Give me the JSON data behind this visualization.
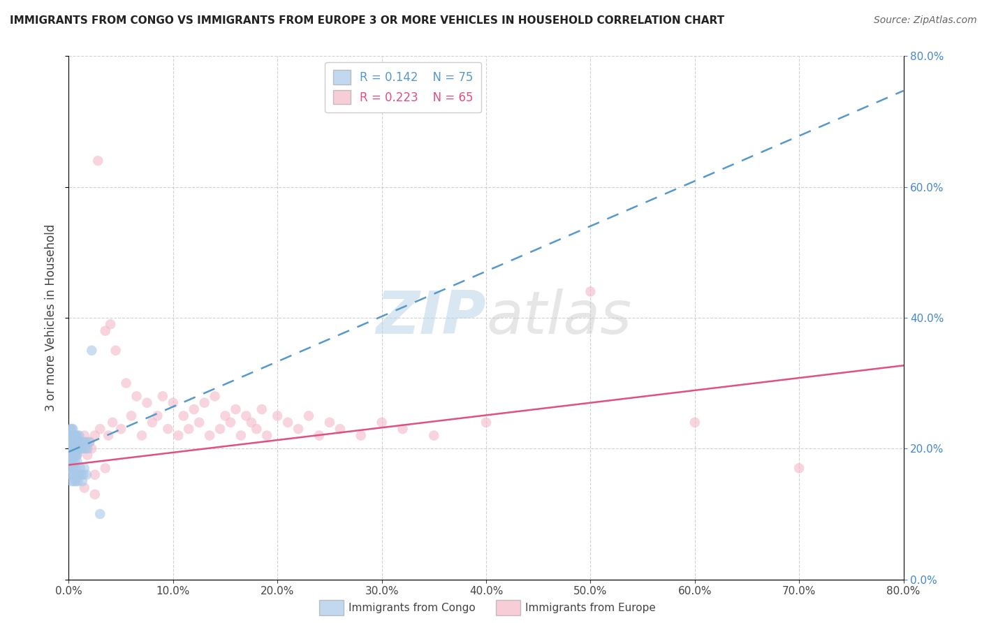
{
  "title": "IMMIGRANTS FROM CONGO VS IMMIGRANTS FROM EUROPE 3 OR MORE VEHICLES IN HOUSEHOLD CORRELATION CHART",
  "source": "Source: ZipAtlas.com",
  "ylabel": "3 or more Vehicles in Household",
  "legend_congo": {
    "R": "0.142",
    "N": "75"
  },
  "legend_europe": {
    "R": "0.223",
    "N": "65"
  },
  "congo_color": "#a8c8e8",
  "europe_color": "#f4b8c8",
  "congo_line_color": "#5599cc",
  "europe_line_color": "#e05080",
  "xlim": [
    0.0,
    0.8
  ],
  "ylim": [
    0.0,
    0.8
  ],
  "congo_points_x": [
    0.001,
    0.001,
    0.001,
    0.002,
    0.002,
    0.002,
    0.002,
    0.002,
    0.003,
    0.003,
    0.003,
    0.003,
    0.003,
    0.003,
    0.003,
    0.004,
    0.004,
    0.004,
    0.004,
    0.004,
    0.004,
    0.005,
    0.005,
    0.005,
    0.005,
    0.005,
    0.006,
    0.006,
    0.006,
    0.006,
    0.007,
    0.007,
    0.007,
    0.007,
    0.008,
    0.008,
    0.008,
    0.009,
    0.009,
    0.01,
    0.01,
    0.011,
    0.012,
    0.013,
    0.014,
    0.015,
    0.016,
    0.017,
    0.018,
    0.02,
    0.001,
    0.002,
    0.002,
    0.003,
    0.003,
    0.004,
    0.004,
    0.005,
    0.005,
    0.006,
    0.006,
    0.007,
    0.007,
    0.008,
    0.008,
    0.009,
    0.01,
    0.011,
    0.012,
    0.013,
    0.014,
    0.015,
    0.017,
    0.022,
    0.03
  ],
  "congo_points_y": [
    0.2,
    0.22,
    0.18,
    0.21,
    0.23,
    0.19,
    0.22,
    0.2,
    0.21,
    0.23,
    0.19,
    0.22,
    0.2,
    0.21,
    0.18,
    0.21,
    0.23,
    0.19,
    0.22,
    0.2,
    0.21,
    0.2,
    0.22,
    0.19,
    0.21,
    0.2,
    0.21,
    0.19,
    0.22,
    0.2,
    0.21,
    0.19,
    0.22,
    0.2,
    0.21,
    0.19,
    0.22,
    0.2,
    0.21,
    0.2,
    0.22,
    0.21,
    0.2,
    0.21,
    0.2,
    0.21,
    0.2,
    0.21,
    0.2,
    0.21,
    0.17,
    0.16,
    0.18,
    0.15,
    0.17,
    0.16,
    0.18,
    0.15,
    0.17,
    0.16,
    0.18,
    0.15,
    0.17,
    0.16,
    0.18,
    0.15,
    0.16,
    0.17,
    0.16,
    0.15,
    0.16,
    0.17,
    0.16,
    0.35,
    0.1
  ],
  "europe_points_x": [
    0.004,
    0.006,
    0.008,
    0.01,
    0.012,
    0.015,
    0.018,
    0.02,
    0.022,
    0.025,
    0.028,
    0.03,
    0.035,
    0.038,
    0.04,
    0.042,
    0.045,
    0.05,
    0.055,
    0.06,
    0.065,
    0.07,
    0.075,
    0.08,
    0.085,
    0.09,
    0.095,
    0.1,
    0.105,
    0.11,
    0.115,
    0.12,
    0.125,
    0.13,
    0.135,
    0.14,
    0.145,
    0.15,
    0.155,
    0.16,
    0.165,
    0.17,
    0.175,
    0.18,
    0.185,
    0.19,
    0.2,
    0.21,
    0.22,
    0.23,
    0.24,
    0.25,
    0.26,
    0.28,
    0.3,
    0.32,
    0.35,
    0.4,
    0.5,
    0.6,
    0.015,
    0.025,
    0.035,
    0.7,
    0.025
  ],
  "europe_points_y": [
    0.2,
    0.22,
    0.19,
    0.21,
    0.2,
    0.22,
    0.19,
    0.21,
    0.2,
    0.22,
    0.64,
    0.23,
    0.38,
    0.22,
    0.39,
    0.24,
    0.35,
    0.23,
    0.3,
    0.25,
    0.28,
    0.22,
    0.27,
    0.24,
    0.25,
    0.28,
    0.23,
    0.27,
    0.22,
    0.25,
    0.23,
    0.26,
    0.24,
    0.27,
    0.22,
    0.28,
    0.23,
    0.25,
    0.24,
    0.26,
    0.22,
    0.25,
    0.24,
    0.23,
    0.26,
    0.22,
    0.25,
    0.24,
    0.23,
    0.25,
    0.22,
    0.24,
    0.23,
    0.22,
    0.24,
    0.23,
    0.22,
    0.24,
    0.44,
    0.24,
    0.14,
    0.13,
    0.17,
    0.17,
    0.16
  ]
}
